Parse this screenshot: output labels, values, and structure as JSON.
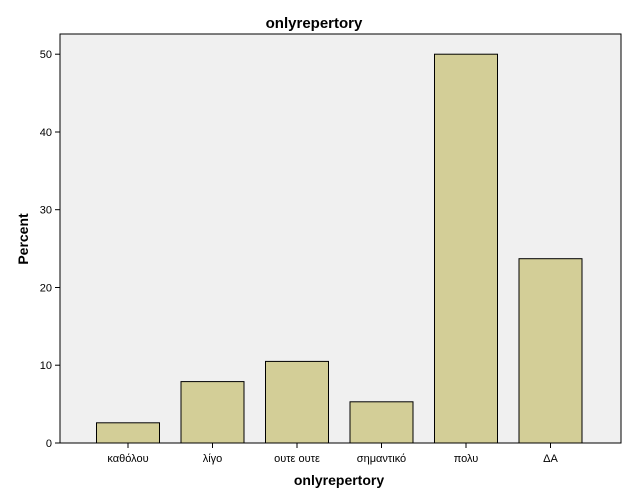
{
  "chart_data": {
    "type": "bar",
    "title": "onlyrepertory",
    "xlabel": "onlyrepertory",
    "ylabel": "Percent",
    "categories": [
      "καθόλου",
      "λίγο",
      "ουτε ουτε",
      "σημαντικό",
      "πολυ",
      "ΔΑ"
    ],
    "values": [
      2.6,
      7.9,
      10.5,
      5.3,
      50.0,
      23.7
    ],
    "ylim": [
      0,
      52.6
    ],
    "yticks": [
      0,
      10,
      20,
      30,
      40,
      50
    ],
    "grid": false,
    "colors": {
      "bar_fill": "#d3ce97",
      "bar_stroke": "#000000",
      "plot_background": "#f0f0f0",
      "page_background": "#ffffff"
    }
  }
}
